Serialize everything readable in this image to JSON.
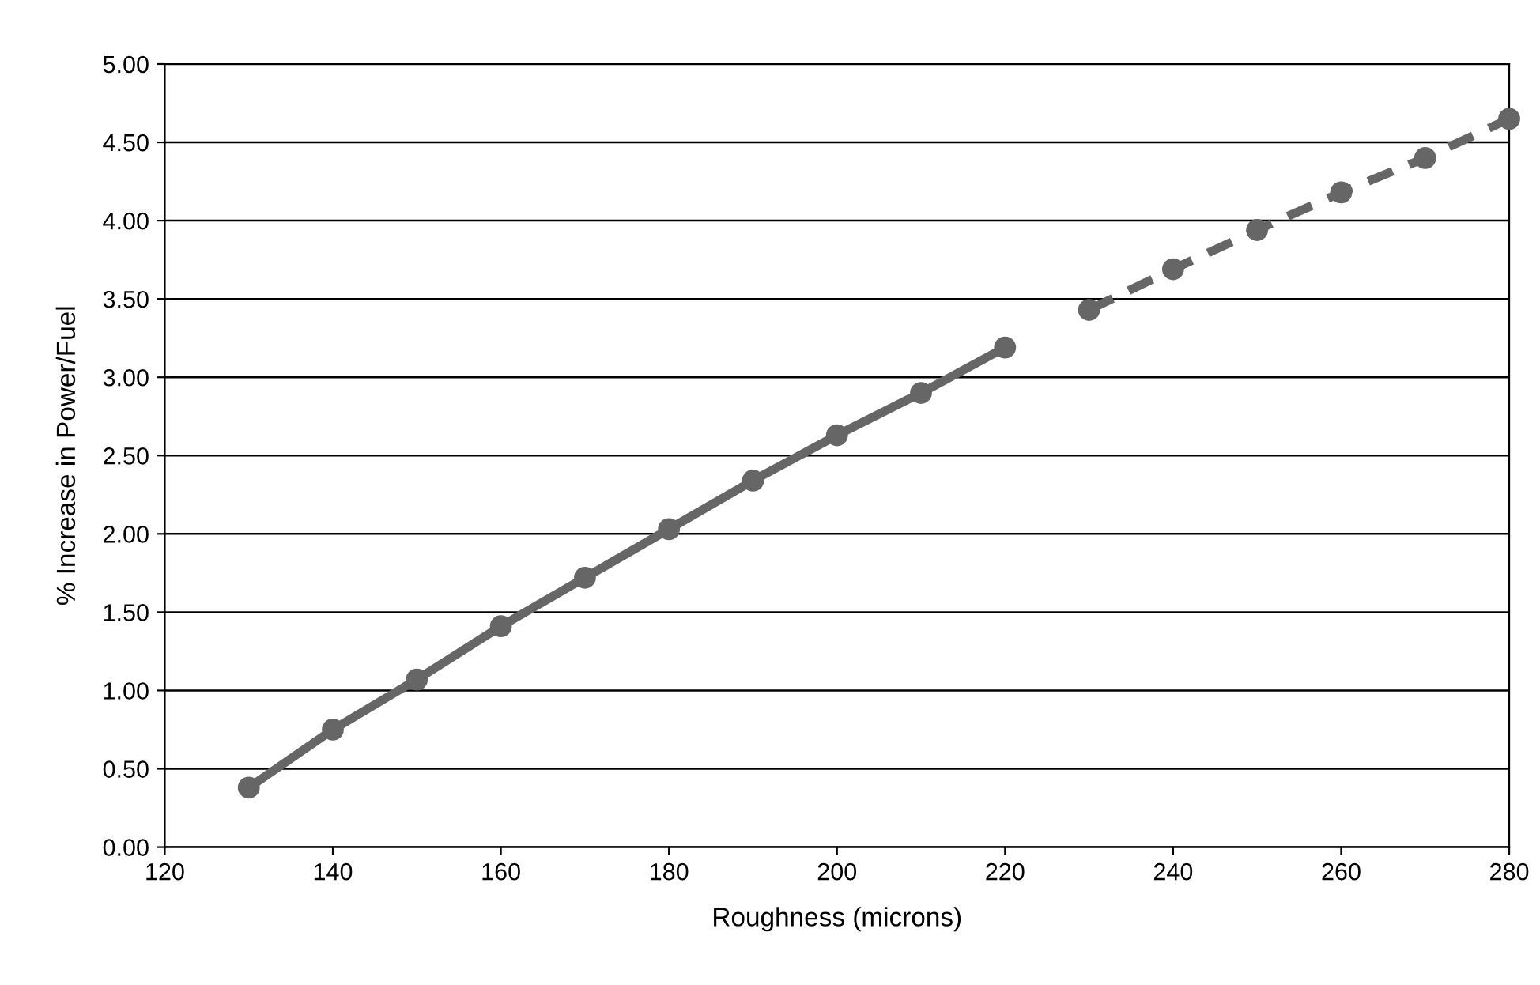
{
  "chart_data": {
    "type": "line",
    "xlabel": "Roughness (microns)",
    "ylabel": "% Increase in Power/Fuel",
    "xlim": [
      120,
      280
    ],
    "xticks": [
      120,
      140,
      160,
      180,
      200,
      220,
      240,
      260,
      280
    ],
    "ylim": [
      0,
      5
    ],
    "yticks": [
      {
        "value": 0,
        "label": "0.00"
      },
      {
        "value": 0.5,
        "label": "0.50"
      },
      {
        "value": 1,
        "label": "1.00"
      },
      {
        "value": 1.5,
        "label": "1.50"
      },
      {
        "value": 2,
        "label": "2.00"
      },
      {
        "value": 2.5,
        "label": "2.50"
      },
      {
        "value": 3,
        "label": "3.00"
      },
      {
        "value": 3.5,
        "label": "3.50"
      },
      {
        "value": 4,
        "label": "4.00"
      },
      {
        "value": 4.5,
        "label": "4.50"
      },
      {
        "value": 5,
        "label": "5.00"
      }
    ],
    "grid": "y",
    "marker": "circle",
    "legend": false,
    "series": [
      {
        "color": "#666666",
        "line_style": "solid",
        "x": [
          130,
          140,
          150,
          160,
          170,
          180,
          190,
          200,
          210,
          220
        ],
        "values": [
          0.38,
          0.75,
          1.07,
          1.41,
          1.72,
          2.03,
          2.34,
          2.63,
          2.9,
          3.19
        ]
      },
      {
        "color": "#666666",
        "line_style": "dashed",
        "x": [
          230,
          240,
          250,
          260,
          270,
          280
        ],
        "values": [
          3.43,
          3.69,
          3.94,
          4.18,
          4.4,
          4.65
        ]
      }
    ]
  }
}
